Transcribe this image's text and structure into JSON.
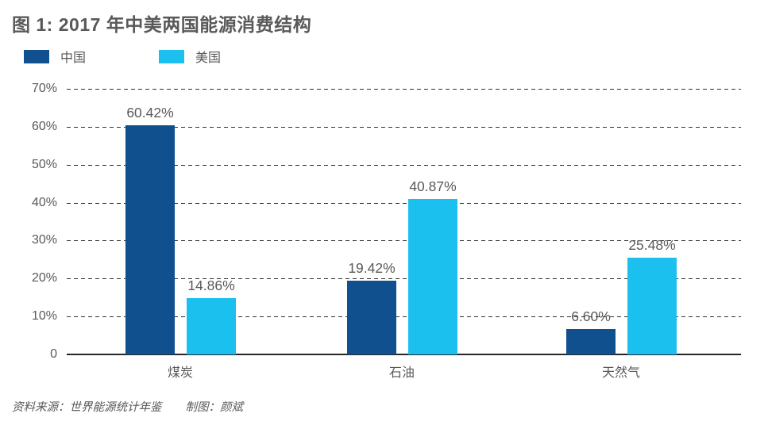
{
  "chart_data": {
    "type": "bar",
    "title": "图 1: 2017 年中美两国能源消费结构",
    "categories": [
      "煤炭",
      "石油",
      "天然气"
    ],
    "series": [
      {
        "name": "中国",
        "color": "#11508F",
        "values": [
          60.42,
          19.42,
          6.6
        ],
        "labels": [
          "60.42%",
          "19.42%",
          "6.60%"
        ]
      },
      {
        "name": "美国",
        "color": "#1BC0EF",
        "values": [
          14.86,
          40.87,
          25.48
        ],
        "labels": [
          "14.86%",
          "40.87%",
          "25.48%"
        ]
      }
    ],
    "xlabel": "",
    "ylabel": "",
    "ylim": [
      0,
      70
    ],
    "yticks": [
      0,
      10,
      20,
      30,
      40,
      50,
      60,
      70
    ],
    "ytick_labels": [
      "0",
      "10%",
      "20%",
      "30%",
      "40%",
      "50%",
      "60%",
      "70%"
    ],
    "grid": "horizontal-dashed",
    "legend_position": "top-left"
  },
  "footer": {
    "source": "资料来源：世界能源统计年鉴",
    "author": "制图：颜斌"
  },
  "colors": {
    "text": "#595959",
    "gridline": "#303030",
    "axis": "#262626",
    "china_bar": "#11508F",
    "us_bar": "#1BC0EF"
  }
}
